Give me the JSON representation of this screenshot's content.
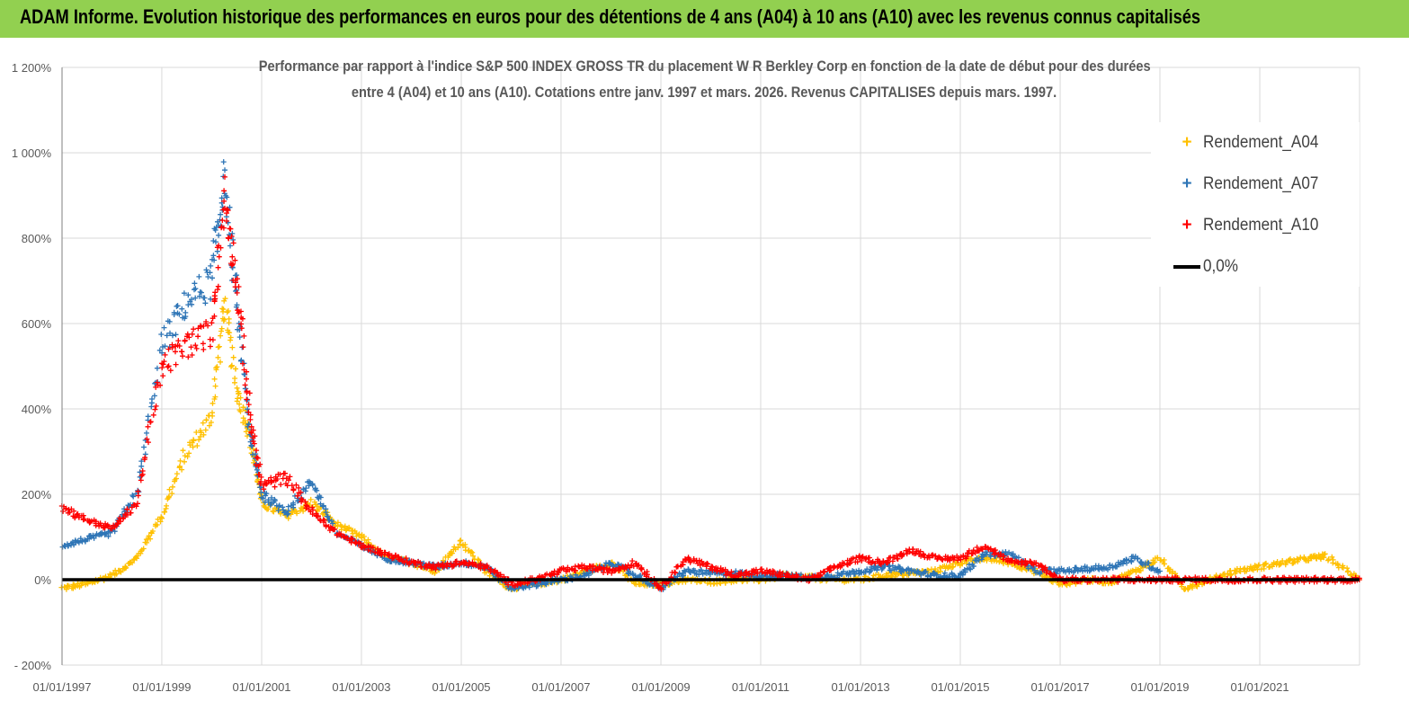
{
  "banner": {
    "title": "ADAM Informe. Evolution historique des performances en euros pour des détentions de 4 ans (A04) à 10 ans (A10) avec les revenus connus capitalisés"
  },
  "colors": {
    "banner": "#92d050",
    "A04": "#ffc000",
    "A07": "#2e75b6",
    "A10": "#ff0000",
    "zero_line": "#000000",
    "grid": "#d9d9d9"
  },
  "chart_data": {
    "type": "scatter",
    "title_line1": "Performance par rapport à l'indice S&P 500 INDEX GROSS TR  du placement W R Berkley Corp en fonction de la date de début pour des durées",
    "title_line2": "entre 4 (A04) et 10 ans (A10). Cotations entre janv. 1997 et mars. 2026. Revenus CAPITALISES depuis mars. 1997.",
    "xlim": [
      "1997-01-01",
      "2023-01-01"
    ],
    "ylim": [
      -200,
      1200
    ],
    "y_ticks": [
      -200,
      0,
      200,
      400,
      600,
      800,
      1000,
      1200
    ],
    "y_tick_labels": [
      "- 200%",
      "0%",
      "200%",
      "400%",
      "600%",
      "800%",
      "1 000%",
      "1 200%"
    ],
    "x_ticks": [
      "1997-01-01",
      "1999-01-01",
      "2001-01-01",
      "2003-01-01",
      "2005-01-01",
      "2007-01-01",
      "2009-01-01",
      "2011-01-01",
      "2013-01-01",
      "2015-01-01",
      "2017-01-01",
      "2019-01-01",
      "2021-01-01"
    ],
    "x_tick_labels": [
      "01/01/1997",
      "01/01/1999",
      "01/01/2001",
      "01/01/2003",
      "01/01/2005",
      "01/01/2007",
      "01/01/2009",
      "01/01/2011",
      "01/01/2013",
      "01/01/2015",
      "01/01/2017",
      "01/01/2019",
      "01/01/2021"
    ],
    "grid": true,
    "legend_position": "top-right",
    "series": [
      {
        "name": "Rendement_A04",
        "marker": "+",
        "x": [
          "1997-01-01",
          "1997-07-01",
          "1998-01-01",
          "1998-07-01",
          "1999-01-01",
          "1999-07-01",
          "2000-01-01",
          "2000-04-01",
          "2000-07-01",
          "2000-10-01",
          "2001-01-01",
          "2001-07-01",
          "2002-01-01",
          "2002-07-01",
          "2003-01-01",
          "2003-07-01",
          "2004-01-01",
          "2004-07-01",
          "2005-01-01",
          "2005-07-01",
          "2006-01-01",
          "2006-07-01",
          "2007-01-01",
          "2007-07-01",
          "2008-01-01",
          "2008-07-01",
          "2009-01-01",
          "2009-07-01",
          "2010-01-01",
          "2010-07-01",
          "2011-01-01",
          "2011-07-01",
          "2012-01-01",
          "2012-07-01",
          "2013-01-01",
          "2013-07-01",
          "2014-01-01",
          "2014-07-01",
          "2015-01-01",
          "2015-07-01",
          "2016-01-01",
          "2016-07-01",
          "2017-01-01",
          "2017-07-01",
          "2018-01-01",
          "2018-07-01",
          "2019-01-01",
          "2019-07-01",
          "2020-01-01",
          "2020-07-01",
          "2021-01-01",
          "2021-07-01",
          "2022-01-01",
          "2022-05-01",
          "2022-12-31"
        ],
        "y": [
          -20,
          -10,
          10,
          50,
          150,
          300,
          380,
          650,
          450,
          350,
          180,
          150,
          180,
          130,
          100,
          50,
          40,
          20,
          90,
          20,
          -20,
          -10,
          0,
          20,
          40,
          -10,
          -10,
          0,
          -5,
          0,
          0,
          10,
          5,
          0,
          0,
          10,
          15,
          20,
          40,
          50,
          40,
          20,
          -10,
          0,
          -5,
          20,
          50,
          -20,
          0,
          20,
          30,
          40,
          50,
          55,
          0
        ]
      },
      {
        "name": "Rendement_A07",
        "marker": "+",
        "x": [
          "1997-01-01",
          "1997-07-01",
          "1998-01-01",
          "1998-07-01",
          "1999-01-01",
          "1999-07-01",
          "2000-01-01",
          "2000-04-01",
          "2000-07-01",
          "2000-10-01",
          "2001-01-01",
          "2001-07-01",
          "2002-01-01",
          "2002-07-01",
          "2003-01-01",
          "2003-07-01",
          "2004-01-01",
          "2004-07-01",
          "2005-01-01",
          "2005-07-01",
          "2006-01-01",
          "2006-07-01",
          "2007-01-01",
          "2007-07-01",
          "2008-01-01",
          "2008-07-01",
          "2009-01-01",
          "2009-07-01",
          "2010-01-01",
          "2010-07-01",
          "2011-01-01",
          "2011-07-01",
          "2012-01-01",
          "2012-07-01",
          "2013-01-01",
          "2013-07-01",
          "2014-01-01",
          "2014-07-01",
          "2015-01-01",
          "2015-07-01",
          "2016-01-01",
          "2016-07-01",
          "2017-01-01",
          "2017-07-01",
          "2018-01-01",
          "2018-07-01",
          "2019-01-01"
        ],
        "y": [
          80,
          95,
          110,
          200,
          550,
          650,
          700,
          940,
          650,
          350,
          200,
          160,
          230,
          110,
          80,
          50,
          40,
          30,
          40,
          30,
          -20,
          -10,
          0,
          10,
          40,
          10,
          -20,
          20,
          15,
          15,
          10,
          10,
          5,
          10,
          20,
          30,
          20,
          10,
          10,
          60,
          60,
          20,
          20,
          25,
          30,
          50,
          20
        ]
      },
      {
        "name": "Rendement_A10",
        "marker": "+",
        "x": [
          "1997-01-01",
          "1997-07-01",
          "1998-01-01",
          "1998-07-01",
          "1999-01-01",
          "1999-07-01",
          "2000-01-01",
          "2000-04-01",
          "2000-07-01",
          "2000-10-01",
          "2001-01-01",
          "2001-07-01",
          "2002-01-01",
          "2002-07-01",
          "2003-01-01",
          "2003-07-01",
          "2004-01-01",
          "2004-07-01",
          "2005-01-01",
          "2005-07-01",
          "2006-01-01",
          "2006-07-01",
          "2007-01-01",
          "2007-07-01",
          "2008-01-01",
          "2008-07-01",
          "2009-01-01",
          "2009-07-01",
          "2010-01-01",
          "2010-07-01",
          "2011-01-01",
          "2011-07-01",
          "2012-01-01",
          "2012-07-01",
          "2013-01-01",
          "2013-07-01",
          "2014-01-01",
          "2014-07-01",
          "2015-01-01",
          "2015-07-01",
          "2016-01-01",
          "2016-07-01",
          "2017-01-01",
          "2017-07-01",
          "2018-01-01",
          "2018-07-01",
          "2019-01-01",
          "2019-07-01",
          "2020-01-01",
          "2020-07-01",
          "2021-01-01",
          "2021-07-01",
          "2022-01-01",
          "2022-07-01",
          "2022-12-31"
        ],
        "y": [
          170,
          140,
          120,
          180,
          500,
          550,
          580,
          900,
          700,
          400,
          220,
          240,
          160,
          110,
          80,
          60,
          40,
          30,
          40,
          30,
          -10,
          0,
          20,
          30,
          20,
          40,
          -20,
          50,
          30,
          10,
          20,
          10,
          0,
          30,
          50,
          40,
          70,
          50,
          50,
          80,
          40,
          40,
          0,
          0,
          0,
          0,
          0,
          0,
          0,
          0,
          0,
          0,
          0,
          0,
          0
        ]
      },
      {
        "name": "0,0%",
        "type": "line",
        "x": [
          "1997-01-01",
          "2022-12-31"
        ],
        "y": [
          0,
          0
        ]
      }
    ]
  }
}
